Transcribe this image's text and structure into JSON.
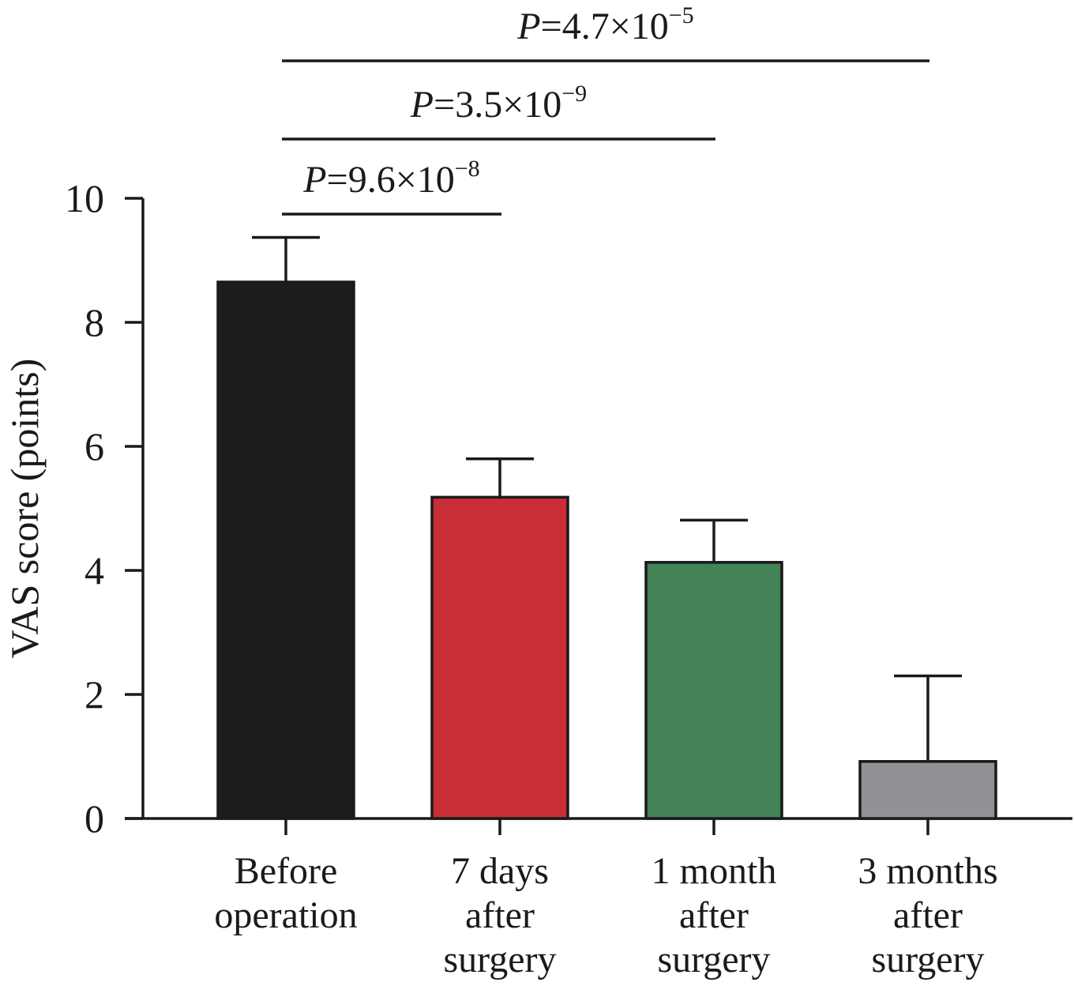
{
  "chart_data": {
    "type": "bar",
    "title": "",
    "xlabel": "",
    "ylabel": "VAS score (points)",
    "ylim": [
      0,
      10
    ],
    "yticks": [
      0,
      2,
      4,
      6,
      8,
      10
    ],
    "grid": false,
    "categories": [
      [
        "Before",
        "operation"
      ],
      [
        "7 days",
        "after",
        "surgery"
      ],
      [
        "1 month",
        "after",
        "surgery"
      ],
      [
        "3 months",
        "after",
        "surgery"
      ]
    ],
    "values": [
      8.65,
      5.18,
      4.13,
      0.92
    ],
    "errors": [
      0.72,
      0.62,
      0.68,
      1.38
    ],
    "colors": [
      "#1c1c1c",
      "#c92d36",
      "#438356",
      "#909296"
    ],
    "comparisons": [
      {
        "from": 0,
        "to": 1,
        "p_text": "=9.6×10",
        "p_exp": "−8"
      },
      {
        "from": 0,
        "to": 2,
        "p_text": "=3.5×10",
        "p_exp": "−9"
      },
      {
        "from": 0,
        "to": 3,
        "p_text": "=4.7×10",
        "p_exp": "−5"
      }
    ],
    "p_symbol": "P"
  }
}
